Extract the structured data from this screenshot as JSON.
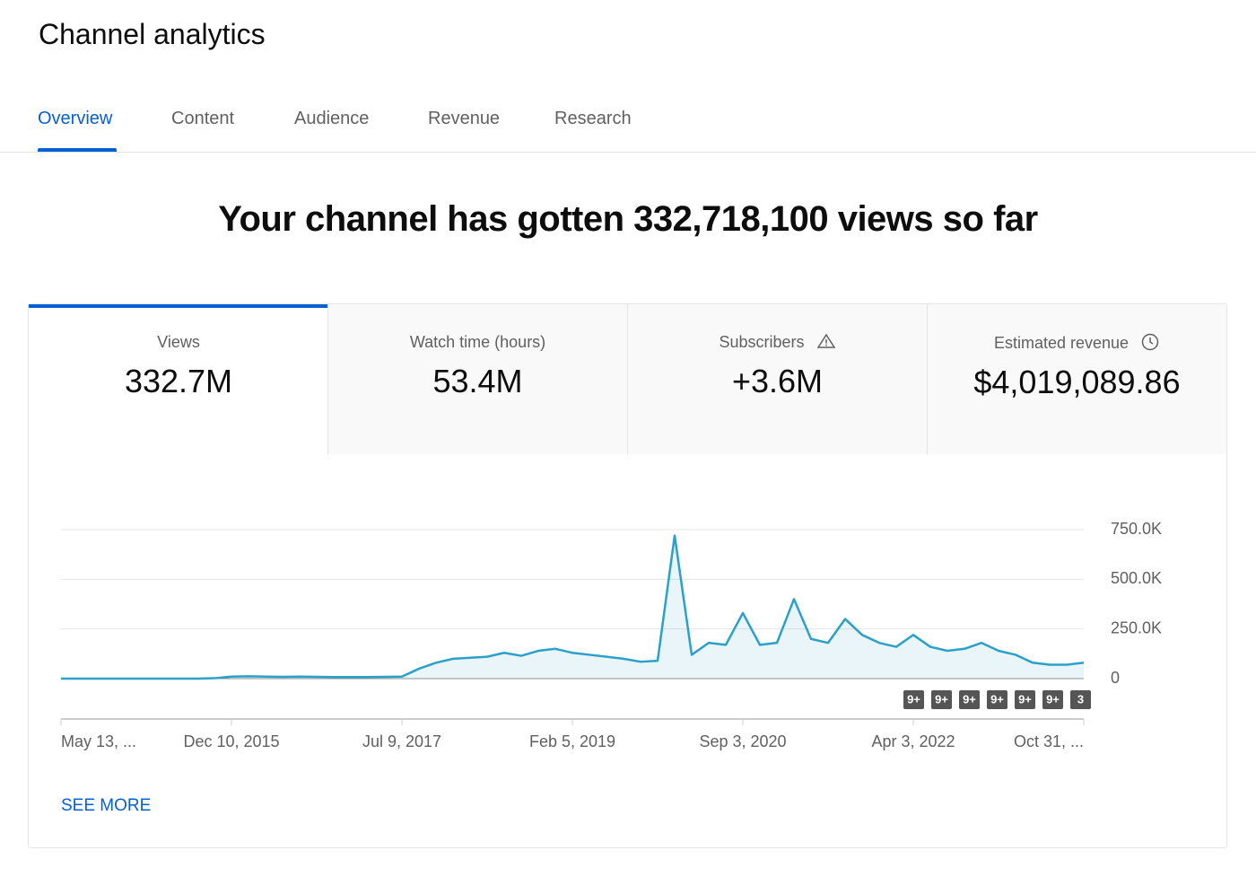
{
  "header": {
    "title": "Channel analytics"
  },
  "tabs": [
    "Overview",
    "Content",
    "Audience",
    "Revenue",
    "Research"
  ],
  "headline": "Your channel has gotten 332,718,100 views so far",
  "metrics": [
    {
      "label": "Views",
      "value": "332.7M"
    },
    {
      "label": "Watch time (hours)",
      "value": "53.4M"
    },
    {
      "label": "Subscribers",
      "value": "+3.6M"
    },
    {
      "label": "Estimated revenue",
      "value": "$4,019,089.86"
    }
  ],
  "chart_data": {
    "type": "line",
    "categories": [
      "May 13, ...",
      null,
      null,
      null,
      null,
      null,
      null,
      null,
      null,
      null,
      "Dec 10, 2015",
      null,
      null,
      null,
      null,
      null,
      null,
      null,
      null,
      null,
      "Jul 9, 2017",
      null,
      null,
      null,
      null,
      null,
      null,
      null,
      null,
      null,
      "Feb 5, 2019",
      null,
      null,
      null,
      null,
      null,
      null,
      null,
      null,
      null,
      "Sep 3, 2020",
      null,
      null,
      null,
      null,
      null,
      null,
      null,
      null,
      null,
      "Apr 3, 2022",
      null,
      null,
      null,
      null,
      null,
      null,
      null,
      null,
      null,
      "Oct 31, ..."
    ],
    "series": [
      {
        "name": "Views",
        "color": "#2ba0c8",
        "values": [
          0,
          0,
          0,
          0,
          0,
          0,
          0,
          0,
          0,
          2000,
          10000,
          12000,
          10000,
          9000,
          10000,
          9000,
          8000,
          8000,
          8000,
          9000,
          10000,
          50000,
          80000,
          100000,
          105000,
          110000,
          130000,
          115000,
          140000,
          150000,
          130000,
          120000,
          110000,
          100000,
          85000,
          90000,
          720000,
          120000,
          180000,
          170000,
          330000,
          170000,
          180000,
          400000,
          200000,
          180000,
          300000,
          220000,
          180000,
          160000,
          220000,
          160000,
          140000,
          150000,
          180000,
          140000,
          120000,
          80000,
          70000,
          70000,
          80000
        ]
      }
    ],
    "ylim": [
      0,
      750000
    ],
    "yticks": [
      0,
      {
        "value": 250000,
        "label": "250.0K"
      },
      {
        "value": 500000,
        "label": "500.0K"
      },
      {
        "value": 750000,
        "label": "750.0K"
      }
    ],
    "grid": true,
    "annotations": [
      "9+",
      "9+",
      "9+",
      "9+",
      "9+",
      "9+",
      "3"
    ]
  },
  "footer_link": "SEE MORE"
}
